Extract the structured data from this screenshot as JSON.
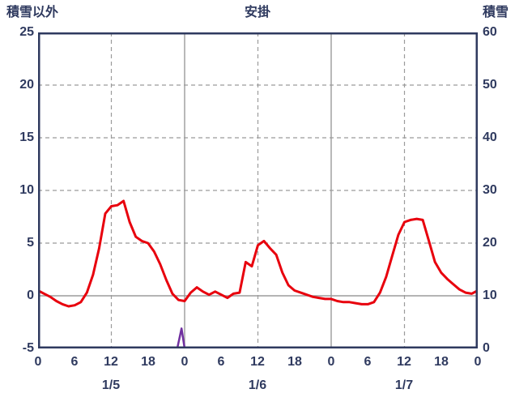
{
  "page": {
    "background": "#ffffff"
  },
  "colors": {
    "axis_text": "#2f3a5f",
    "frame": "#2f3a5f",
    "grid": "#9b9b9b",
    "red_line": "#e8000d",
    "purple_line": "#7030a0"
  },
  "chart_data": {
    "type": "line",
    "title": "安掛",
    "left_axis": {
      "label": "積雪以外",
      "min": -5,
      "max": 25,
      "ticks": [
        25,
        20,
        15,
        10,
        5,
        0,
        -5
      ]
    },
    "right_axis": {
      "label": "積雪",
      "min": 0,
      "max": 60,
      "ticks": [
        60,
        50,
        40,
        30,
        20,
        10,
        0
      ]
    },
    "x_axis": {
      "hours_total": 72,
      "tick_hours": [
        0,
        6,
        12,
        18,
        24,
        30,
        36,
        42,
        48,
        54,
        60,
        66,
        72
      ],
      "tick_labels": [
        "0",
        "6",
        "12",
        "18",
        "0",
        "6",
        "12",
        "18",
        "0",
        "6",
        "12",
        "18",
        "0"
      ],
      "day_labels": [
        "1/5",
        "1/6",
        "1/7"
      ]
    },
    "grid": {
      "color": "#9b9b9b",
      "h_dashed": [
        20,
        15,
        10,
        5
      ],
      "h_solid": [
        0
      ],
      "v_dashed_hours": [
        12,
        36,
        60
      ],
      "v_solid_hours": [
        24,
        48
      ]
    },
    "series": [
      {
        "name": "purple-line",
        "axis": "right",
        "color": "#7030a0",
        "width": 2.5,
        "x_hours": [
          0,
          22.8,
          23.5,
          24.0,
          72
        ],
        "values": [
          0,
          0,
          3.8,
          0,
          0
        ]
      },
      {
        "name": "red-line",
        "axis": "left",
        "color": "#e8000d",
        "width": 3,
        "values": [
          0.5,
          0.2,
          -0.1,
          -0.5,
          -0.8,
          -1.0,
          -0.9,
          -0.6,
          0.3,
          2.0,
          4.5,
          7.8,
          8.5,
          8.6,
          9.0,
          7.0,
          5.6,
          5.2,
          5.0,
          4.2,
          3.0,
          1.5,
          0.2,
          -0.4,
          -0.5,
          0.3,
          0.8,
          0.4,
          0.1,
          0.4,
          0.1,
          -0.2,
          0.2,
          0.3,
          3.2,
          2.8,
          4.8,
          5.2,
          4.5,
          3.9,
          2.2,
          1.0,
          0.5,
          0.3,
          0.1,
          -0.1,
          -0.2,
          -0.3,
          -0.3,
          -0.5,
          -0.6,
          -0.6,
          -0.7,
          -0.8,
          -0.8,
          -0.6,
          0.3,
          1.8,
          3.8,
          5.8,
          7.0,
          7.2,
          7.3,
          7.2,
          5.2,
          3.2,
          2.2,
          1.6,
          1.1,
          0.6,
          0.3,
          0.2,
          0.5
        ]
      }
    ]
  }
}
